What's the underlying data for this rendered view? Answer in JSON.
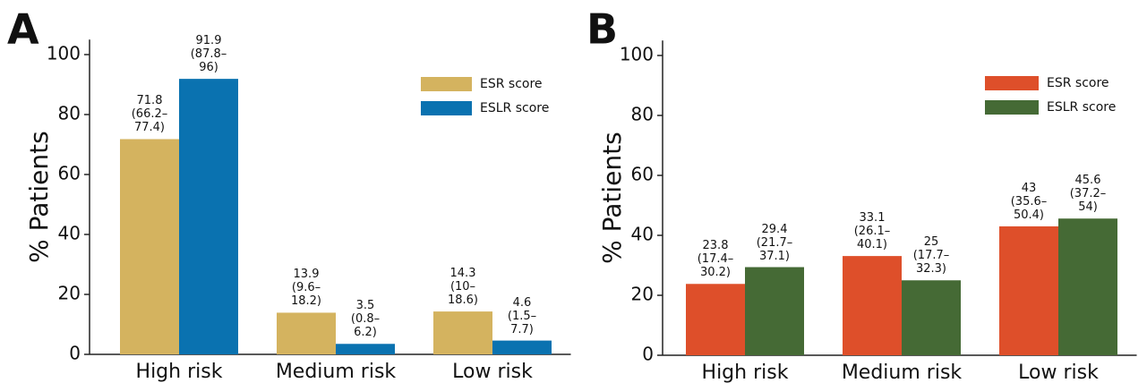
{
  "chart_data": [
    {
      "type": "bar",
      "title": "A",
      "y_label": "% Patients",
      "categories": [
        "High risk",
        "Medium risk",
        "Low risk"
      ],
      "series": [
        {
          "name": "ESR score",
          "color": "#d4b35f",
          "values": [
            71.8,
            13.9,
            14.3
          ],
          "value_labels": [
            "71.8\n(66.2–\n77.4)",
            "13.9\n(9.6–\n18.2)",
            "14.3\n(10–\n18.6)"
          ]
        },
        {
          "name": "ESLR score",
          "color": "#0a72b0",
          "values": [
            91.9,
            3.5,
            4.6
          ],
          "value_labels": [
            "91.9\n(87.8–\n96)",
            "3.5\n(0.8–\n6.2)",
            "4.6\n(1.5–\n7.7)"
          ]
        }
      ],
      "ylim": [
        0,
        105
      ],
      "yticks": [
        0,
        20,
        40,
        60,
        80,
        100
      ],
      "legend": "upper right"
    },
    {
      "type": "bar",
      "title": "B",
      "y_label": "% Patients",
      "categories": [
        "High risk",
        "Medium risk",
        "Low risk"
      ],
      "series": [
        {
          "name": "ESR score",
          "color": "#de4f2a",
          "values": [
            23.8,
            33.1,
            43
          ],
          "value_labels": [
            "23.8\n(17.4–\n30.2)",
            "33.1\n(26.1–\n40.1)",
            "43\n(35.6–\n50.4)"
          ]
        },
        {
          "name": "ESLR score",
          "color": "#456a35",
          "values": [
            29.4,
            25,
            45.6
          ],
          "value_labels": [
            "29.4\n(21.7–\n37.1)",
            "25\n(17.7–\n32.3)",
            "45.6\n(37.2–\n54)"
          ]
        }
      ],
      "ylim": [
        0,
        105
      ],
      "yticks": [
        0,
        20,
        40,
        60,
        80,
        100
      ],
      "legend": "upper right"
    }
  ]
}
